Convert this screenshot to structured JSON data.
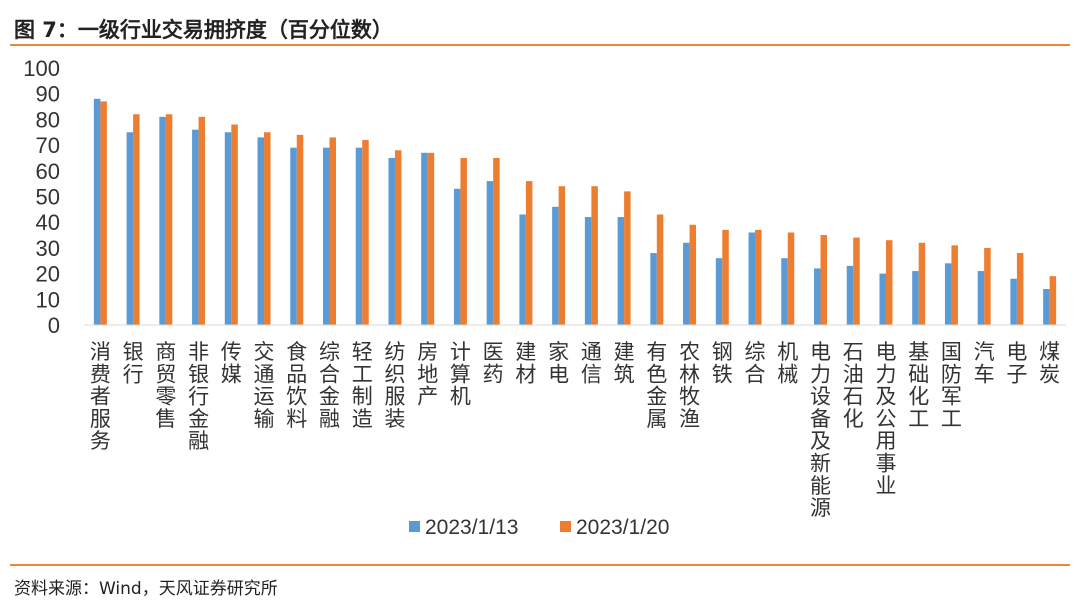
{
  "page": {
    "title": "图 7：一级行业交易拥挤度（百分位数）",
    "source": "资料来源：Wind，天风证券研究所"
  },
  "colors": {
    "series_1": "#5b9bd5",
    "series_2": "#ed7d31",
    "rule": "#e8893c",
    "axis_text": "#333333"
  },
  "chart_data": {
    "type": "bar",
    "title": "",
    "xlabel": "",
    "ylabel": "",
    "ylim": [
      0,
      100
    ],
    "y_ticks": [
      0,
      10,
      20,
      30,
      40,
      50,
      60,
      70,
      80,
      90,
      100
    ],
    "grid": false,
    "legend_position": "bottom",
    "categories": [
      "消费者服务",
      "银行",
      "商贸零售",
      "非银行金融",
      "传媒",
      "交通运输",
      "食品饮料",
      "综合金融",
      "轻工制造",
      "纺织服装",
      "房地产",
      "计算机",
      "医药",
      "建材",
      "家电",
      "通信",
      "建筑",
      "有色金属",
      "农林牧渔",
      "钢铁",
      "综合",
      "机械",
      "电力设备及新能源",
      "石油石化",
      "电力及公用事业",
      "基础化工",
      "国防军工",
      "汽车",
      "电子",
      "煤炭"
    ],
    "series": [
      {
        "name": "2023/1/13",
        "values": [
          88,
          75,
          81,
          76,
          75,
          73,
          69,
          69,
          69,
          65,
          67,
          53,
          56,
          43,
          46,
          42,
          42,
          28,
          32,
          26,
          36,
          26,
          22,
          23,
          20,
          21,
          24,
          21,
          18,
          14
        ]
      },
      {
        "name": "2023/1/20",
        "values": [
          87,
          82,
          82,
          81,
          78,
          75,
          74,
          73,
          72,
          68,
          67,
          65,
          65,
          56,
          54,
          54,
          52,
          43,
          39,
          37,
          37,
          36,
          35,
          34,
          33,
          32,
          31,
          30,
          28,
          19
        ]
      }
    ]
  }
}
